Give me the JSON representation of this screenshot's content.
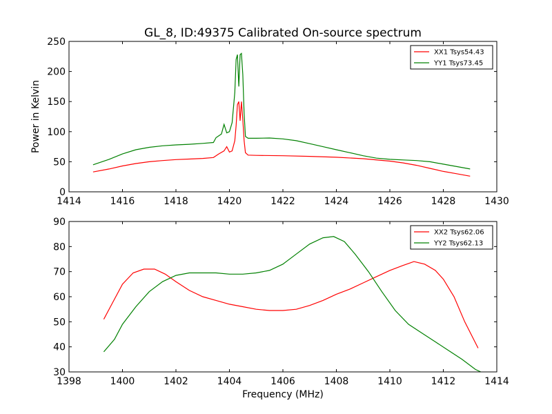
{
  "chart_data": [
    {
      "type": "line",
      "title": "GL_8, ID:49375 Calibrated On-source spectrum",
      "xlabel": "",
      "ylabel": "Power in Kelvin",
      "xlim": [
        1414,
        1430
      ],
      "ylim": [
        0,
        250
      ],
      "xticks": [
        1414,
        1416,
        1418,
        1420,
        1422,
        1424,
        1426,
        1428,
        1430
      ],
      "yticks": [
        0,
        50,
        100,
        150,
        200,
        250
      ],
      "grid": false,
      "legend_position": "top-right",
      "series": [
        {
          "name": "XX1 Tsys54.43",
          "color": "#ff0000",
          "points": [
            [
              1414.9,
              33
            ],
            [
              1415.5,
              38
            ],
            [
              1416,
              43
            ],
            [
              1416.5,
              47
            ],
            [
              1417,
              50
            ],
            [
              1417.5,
              52
            ],
            [
              1418,
              53.5
            ],
            [
              1418.5,
              54.5
            ],
            [
              1419,
              55.5
            ],
            [
              1419.4,
              57
            ],
            [
              1419.6,
              63
            ],
            [
              1419.8,
              68
            ],
            [
              1419.9,
              75
            ],
            [
              1420.0,
              66
            ],
            [
              1420.1,
              68
            ],
            [
              1420.2,
              85
            ],
            [
              1420.25,
              110
            ],
            [
              1420.3,
              145
            ],
            [
              1420.35,
              150
            ],
            [
              1420.4,
              118
            ],
            [
              1420.45,
              150
            ],
            [
              1420.5,
              120
            ],
            [
              1420.55,
              85
            ],
            [
              1420.6,
              65
            ],
            [
              1420.7,
              61
            ],
            [
              1421,
              60.5
            ],
            [
              1422,
              60
            ],
            [
              1423,
              59
            ],
            [
              1424,
              57.5
            ],
            [
              1425,
              55
            ],
            [
              1426,
              51
            ],
            [
              1426.5,
              48
            ],
            [
              1427,
              44
            ],
            [
              1427.5,
              39
            ],
            [
              1428,
              34
            ],
            [
              1428.5,
              30
            ],
            [
              1429,
              26
            ]
          ]
        },
        {
          "name": "YY1 Tsys73.45",
          "color": "#008000",
          "points": [
            [
              1414.9,
              45
            ],
            [
              1415.5,
              54
            ],
            [
              1416,
              63
            ],
            [
              1416.5,
              70
            ],
            [
              1417,
              74
            ],
            [
              1417.5,
              76.5
            ],
            [
              1418,
              78
            ],
            [
              1418.5,
              79
            ],
            [
              1419,
              80.5
            ],
            [
              1419.4,
              82
            ],
            [
              1419.5,
              90
            ],
            [
              1419.6,
              93
            ],
            [
              1419.7,
              96
            ],
            [
              1419.8,
              112
            ],
            [
              1419.9,
              98
            ],
            [
              1420.0,
              100
            ],
            [
              1420.1,
              115
            ],
            [
              1420.2,
              165
            ],
            [
              1420.25,
              220
            ],
            [
              1420.3,
              228
            ],
            [
              1420.35,
              175
            ],
            [
              1420.4,
              228
            ],
            [
              1420.45,
              230
            ],
            [
              1420.5,
              195
            ],
            [
              1420.55,
              130
            ],
            [
              1420.6,
              92
            ],
            [
              1420.7,
              89
            ],
            [
              1421,
              89
            ],
            [
              1421.5,
              89.5
            ],
            [
              1422,
              88
            ],
            [
              1422.5,
              85
            ],
            [
              1423,
              80
            ],
            [
              1423.5,
              75
            ],
            [
              1424,
              70
            ],
            [
              1424.5,
              65
            ],
            [
              1425,
              60
            ],
            [
              1425.5,
              56
            ],
            [
              1426,
              54
            ],
            [
              1426.5,
              53
            ],
            [
              1427,
              52
            ],
            [
              1427.5,
              50
            ],
            [
              1428,
              46
            ],
            [
              1428.5,
              42
            ],
            [
              1429,
              38
            ]
          ]
        }
      ]
    },
    {
      "type": "line",
      "title": "",
      "xlabel": "Frequency (MHz)",
      "ylabel": "",
      "xlim": [
        1398,
        1414
      ],
      "ylim": [
        30,
        90
      ],
      "xticks": [
        1398,
        1400,
        1402,
        1404,
        1406,
        1408,
        1410,
        1412,
        1414
      ],
      "yticks": [
        30,
        40,
        50,
        60,
        70,
        80,
        90
      ],
      "grid": false,
      "legend_position": "top-right",
      "series": [
        {
          "name": "XX2 Tsys62.06",
          "color": "#ff0000",
          "points": [
            [
              1399.3,
              51
            ],
            [
              1399.6,
              57
            ],
            [
              1400,
              65
            ],
            [
              1400.4,
              69.5
            ],
            [
              1400.8,
              71
            ],
            [
              1401.2,
              71
            ],
            [
              1401.6,
              69
            ],
            [
              1402,
              66
            ],
            [
              1402.5,
              62.5
            ],
            [
              1403,
              60
            ],
            [
              1403.5,
              58.5
            ],
            [
              1404,
              57
            ],
            [
              1404.5,
              56
            ],
            [
              1405,
              55
            ],
            [
              1405.5,
              54.5
            ],
            [
              1406,
              54.5
            ],
            [
              1406.5,
              55
            ],
            [
              1407,
              56.5
            ],
            [
              1407.5,
              58.5
            ],
            [
              1408,
              61
            ],
            [
              1408.5,
              63
            ],
            [
              1409,
              65.5
            ],
            [
              1409.5,
              68
            ],
            [
              1410,
              70.5
            ],
            [
              1410.5,
              72.5
            ],
            [
              1410.9,
              74
            ],
            [
              1411.3,
              73
            ],
            [
              1411.7,
              70.5
            ],
            [
              1412,
              67
            ],
            [
              1412.4,
              60
            ],
            [
              1412.8,
              50
            ],
            [
              1413.3,
              39.5
            ]
          ]
        },
        {
          "name": "YY2 Tsys62.13",
          "color": "#008000",
          "points": [
            [
              1399.3,
              38
            ],
            [
              1399.7,
              43
            ],
            [
              1400,
              49
            ],
            [
              1400.5,
              56
            ],
            [
              1401,
              62
            ],
            [
              1401.5,
              66
            ],
            [
              1402,
              68.5
            ],
            [
              1402.5,
              69.5
            ],
            [
              1403,
              69.5
            ],
            [
              1403.5,
              69.5
            ],
            [
              1404,
              69
            ],
            [
              1404.5,
              69
            ],
            [
              1405,
              69.5
            ],
            [
              1405.5,
              70.5
            ],
            [
              1406,
              73
            ],
            [
              1406.5,
              77
            ],
            [
              1407,
              81
            ],
            [
              1407.5,
              83.5
            ],
            [
              1407.9,
              84
            ],
            [
              1408.3,
              82
            ],
            [
              1408.7,
              77
            ],
            [
              1409.2,
              70
            ],
            [
              1409.7,
              62
            ],
            [
              1410.2,
              54.5
            ],
            [
              1410.7,
              49
            ],
            [
              1411.2,
              45.5
            ],
            [
              1411.7,
              42
            ],
            [
              1412.2,
              38.5
            ],
            [
              1412.7,
              35
            ],
            [
              1413.2,
              31
            ],
            [
              1413.4,
              30
            ]
          ]
        }
      ]
    }
  ]
}
